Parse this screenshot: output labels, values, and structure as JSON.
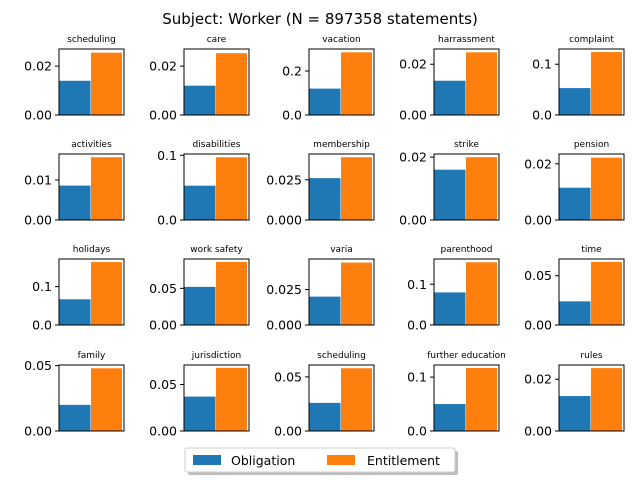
{
  "chart_data": {
    "type": "bar",
    "title": "Subject: Worker (N = 897358 statements)",
    "legend": {
      "placement": "bottom-center",
      "entries": [
        {
          "name": "Obligation",
          "color": "#1f77b4"
        },
        {
          "name": "Entitlement",
          "color": "#ff7f0e"
        }
      ]
    },
    "subplots": [
      {
        "title": "scheduling",
        "ylim": [
          0,
          0.027
        ],
        "ticks": [
          0.0,
          0.02
        ],
        "tick_labels": [
          "0.00",
          "0.02"
        ],
        "series": [
          {
            "name": "Obligation",
            "value": 0.014
          },
          {
            "name": "Entitlement",
            "value": 0.0255
          }
        ]
      },
      {
        "title": "care",
        "ylim": [
          0,
          0.027
        ],
        "ticks": [
          0.0,
          0.02
        ],
        "tick_labels": [
          "0.00",
          "0.02"
        ],
        "series": [
          {
            "name": "Obligation",
            "value": 0.012
          },
          {
            "name": "Entitlement",
            "value": 0.0253
          }
        ]
      },
      {
        "title": "vacation",
        "ylim": [
          0,
          0.3
        ],
        "ticks": [
          0.0,
          0.2
        ],
        "tick_labels": [
          "0.0",
          "0.2"
        ],
        "series": [
          {
            "name": "Obligation",
            "value": 0.12
          },
          {
            "name": "Entitlement",
            "value": 0.285
          }
        ]
      },
      {
        "title": "harrassment",
        "ylim": [
          0,
          0.026
        ],
        "ticks": [
          0.0,
          0.02
        ],
        "tick_labels": [
          "0.00",
          "0.02"
        ],
        "series": [
          {
            "name": "Obligation",
            "value": 0.0135
          },
          {
            "name": "Entitlement",
            "value": 0.0247
          }
        ]
      },
      {
        "title": "complaint",
        "ylim": [
          0,
          0.13
        ],
        "ticks": [
          0.0,
          0.1
        ],
        "tick_labels": [
          "0.0",
          "0.1"
        ],
        "series": [
          {
            "name": "Obligation",
            "value": 0.053
          },
          {
            "name": "Entitlement",
            "value": 0.124
          }
        ]
      },
      {
        "title": "activities",
        "ylim": [
          0,
          0.0165
        ],
        "ticks": [
          0.0,
          0.01
        ],
        "tick_labels": [
          "0.00",
          "0.01"
        ],
        "series": [
          {
            "name": "Obligation",
            "value": 0.0086
          },
          {
            "name": "Entitlement",
            "value": 0.0157
          }
        ]
      },
      {
        "title": "disabilities",
        "ylim": [
          0,
          0.102
        ],
        "ticks": [
          0.0,
          0.1
        ],
        "tick_labels": [
          "0.0",
          "0.1"
        ],
        "series": [
          {
            "name": "Obligation",
            "value": 0.053
          },
          {
            "name": "Entitlement",
            "value": 0.097
          }
        ]
      },
      {
        "title": "membership",
        "ylim": [
          0,
          0.041
        ],
        "ticks": [
          0.0,
          0.025
        ],
        "tick_labels": [
          "0.000",
          "0.025"
        ],
        "series": [
          {
            "name": "Obligation",
            "value": 0.026
          },
          {
            "name": "Entitlement",
            "value": 0.039
          }
        ]
      },
      {
        "title": "strike",
        "ylim": [
          0,
          0.021
        ],
        "ticks": [
          0.0,
          0.02
        ],
        "tick_labels": [
          "0.00",
          "0.02"
        ],
        "series": [
          {
            "name": "Obligation",
            "value": 0.016
          },
          {
            "name": "Entitlement",
            "value": 0.02
          }
        ]
      },
      {
        "title": "pension",
        "ylim": [
          0,
          0.0235
        ],
        "ticks": [
          0.0,
          0.02
        ],
        "tick_labels": [
          "0.00",
          "0.02"
        ],
        "series": [
          {
            "name": "Obligation",
            "value": 0.0115
          },
          {
            "name": "Entitlement",
            "value": 0.0222
          }
        ]
      },
      {
        "title": "holidays",
        "ylim": [
          0,
          0.172
        ],
        "ticks": [
          0.0,
          0.1
        ],
        "tick_labels": [
          "0.0",
          "0.1"
        ],
        "series": [
          {
            "name": "Obligation",
            "value": 0.067
          },
          {
            "name": "Entitlement",
            "value": 0.164
          }
        ]
      },
      {
        "title": "work safety",
        "ylim": [
          0,
          0.09
        ],
        "ticks": [
          0.0,
          0.05
        ],
        "tick_labels": [
          "0.00",
          "0.05"
        ],
        "series": [
          {
            "name": "Obligation",
            "value": 0.052
          },
          {
            "name": "Entitlement",
            "value": 0.086
          }
        ]
      },
      {
        "title": "varia",
        "ylim": [
          0,
          0.0465
        ],
        "ticks": [
          0.0,
          0.025
        ],
        "tick_labels": [
          "0.000",
          "0.025"
        ],
        "series": [
          {
            "name": "Obligation",
            "value": 0.02
          },
          {
            "name": "Entitlement",
            "value": 0.044
          }
        ]
      },
      {
        "title": "parenthood",
        "ylim": [
          0,
          0.162
        ],
        "ticks": [
          0.0,
          0.1
        ],
        "tick_labels": [
          "0.0",
          "0.1"
        ],
        "series": [
          {
            "name": "Obligation",
            "value": 0.08
          },
          {
            "name": "Entitlement",
            "value": 0.154
          }
        ]
      },
      {
        "title": "time",
        "ylim": [
          0,
          0.067
        ],
        "ticks": [
          0.0,
          0.05
        ],
        "tick_labels": [
          "0.00",
          "0.05"
        ],
        "series": [
          {
            "name": "Obligation",
            "value": 0.024
          },
          {
            "name": "Entitlement",
            "value": 0.064
          }
        ]
      },
      {
        "title": "family",
        "ylim": [
          0,
          0.0505
        ],
        "ticks": [
          0.0,
          0.05
        ],
        "tick_labels": [
          "0.00",
          "0.05"
        ],
        "series": [
          {
            "name": "Obligation",
            "value": 0.02
          },
          {
            "name": "Entitlement",
            "value": 0.048
          }
        ]
      },
      {
        "title": "jurisdiction",
        "ylim": [
          0,
          0.071
        ],
        "ticks": [
          0.0,
          0.05
        ],
        "tick_labels": [
          "0.00",
          "0.05"
        ],
        "series": [
          {
            "name": "Obligation",
            "value": 0.037
          },
          {
            "name": "Entitlement",
            "value": 0.068
          }
        ]
      },
      {
        "title": "scheduling",
        "ylim": [
          0,
          0.061
        ],
        "ticks": [
          0.0,
          0.05
        ],
        "tick_labels": [
          "0.00",
          "0.05"
        ],
        "series": [
          {
            "name": "Obligation",
            "value": 0.026
          },
          {
            "name": "Entitlement",
            "value": 0.058
          }
        ]
      },
      {
        "title": "further education",
        "ylim": [
          0,
          0.1225
        ],
        "ticks": [
          0.0,
          0.1
        ],
        "tick_labels": [
          "0.0",
          "0.1"
        ],
        "series": [
          {
            "name": "Obligation",
            "value": 0.05
          },
          {
            "name": "Entitlement",
            "value": 0.117
          }
        ]
      },
      {
        "title": "rules",
        "ylim": [
          0,
          0.0255
        ],
        "ticks": [
          0.0,
          0.02
        ],
        "tick_labels": [
          "0.00",
          "0.02"
        ],
        "series": [
          {
            "name": "Obligation",
            "value": 0.0135
          },
          {
            "name": "Entitlement",
            "value": 0.0243
          }
        ]
      }
    ]
  }
}
